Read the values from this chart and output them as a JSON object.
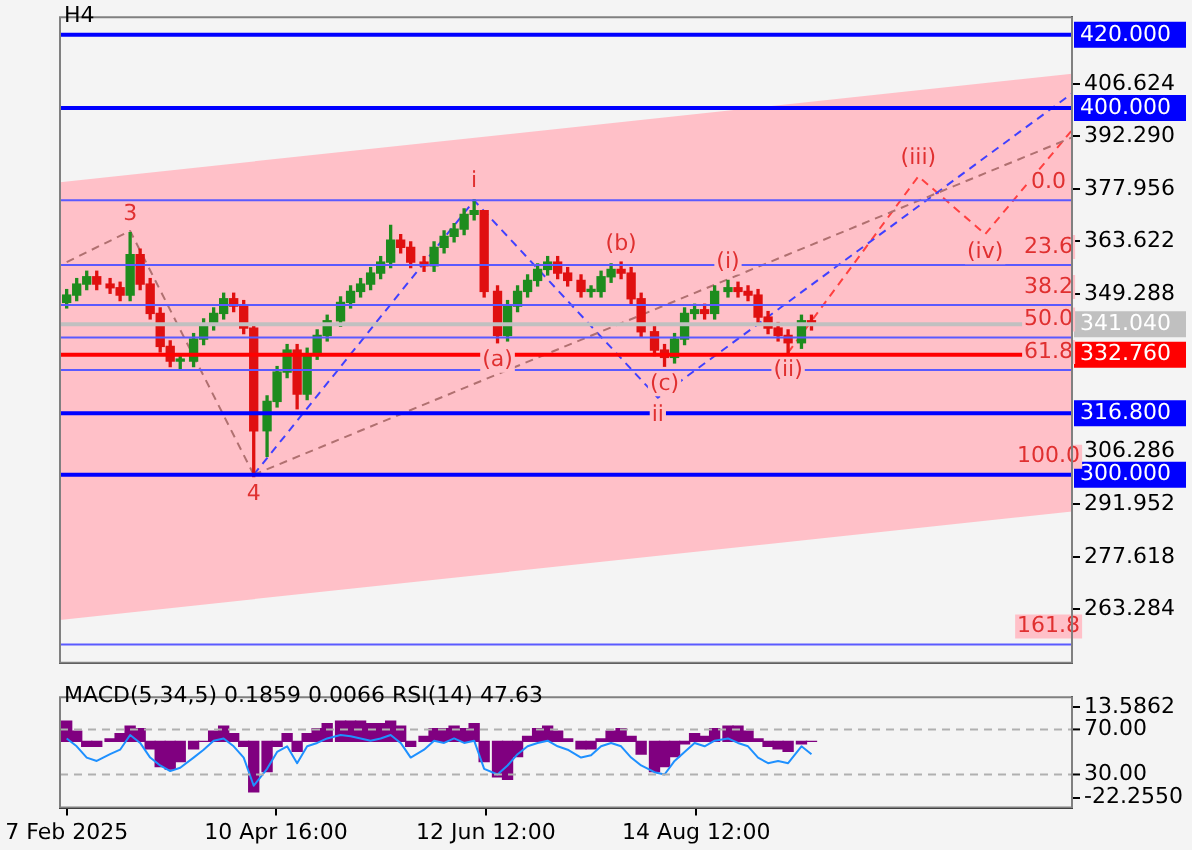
{
  "chart_data": [
    {
      "type": "candlestick",
      "title": "H4",
      "tick_labels": "y",
      "x": [
        "2025-02-07",
        "2025-02-10",
        "2025-02-13",
        "2025-02-16",
        "2025-02-20",
        "2025-02-23",
        "2025-02-26",
        "2025-03-01",
        "2025-03-04",
        "2025-03-07",
        "2025-03-10",
        "2025-03-13",
        "2025-03-17",
        "2025-03-20",
        "2025-03-23",
        "2025-03-26",
        "2025-03-29",
        "2025-04-01",
        "2025-04-04",
        "2025-04-08",
        "2025-04-11",
        "2025-04-14",
        "2025-04-17",
        "2025-04-20",
        "2025-04-23",
        "2025-04-26",
        "2025-04-30",
        "2025-05-03",
        "2025-05-06",
        "2025-05-09",
        "2025-05-12",
        "2025-05-15",
        "2025-05-18",
        "2025-05-21",
        "2025-05-25",
        "2025-05-28",
        "2025-05-31",
        "2025-06-03",
        "2025-06-06",
        "2025-06-09",
        "2025-06-12",
        "2025-06-16",
        "2025-06-19",
        "2025-06-22",
        "2025-06-25",
        "2025-06-28",
        "2025-07-01",
        "2025-07-04",
        "2025-07-07",
        "2025-07-11",
        "2025-07-14",
        "2025-07-17",
        "2025-07-20",
        "2025-07-23",
        "2025-07-26",
        "2025-07-29",
        "2025-08-02",
        "2025-08-05",
        "2025-08-08",
        "2025-08-11",
        "2025-08-14",
        "2025-08-17",
        "2025-08-20",
        "2025-08-24",
        "2025-08-27",
        "2025-08-30",
        "2025-09-02",
        "2025-09-05",
        "2025-09-08",
        "2025-09-11",
        "2025-09-15",
        "2025-09-18"
      ],
      "ohlc": [
        [
          347,
          350.5,
          345.5,
          349
        ],
        [
          349,
          353.5,
          347.5,
          352
        ],
        [
          352,
          355.5,
          350.5,
          354
        ],
        [
          354,
          355.5,
          350.5,
          352
        ],
        [
          352,
          353.5,
          349.5,
          351
        ],
        [
          351,
          352.5,
          347.5,
          349
        ],
        [
          349,
          366,
          347.5,
          360
        ],
        [
          360,
          361.5,
          350.5,
          352
        ],
        [
          352,
          353.5,
          342.5,
          344
        ],
        [
          344,
          345.5,
          333.5,
          335
        ],
        [
          335,
          336.5,
          329.5,
          331
        ],
        [
          331,
          332.5,
          329,
          331
        ],
        [
          331,
          338.5,
          329.5,
          337
        ],
        [
          337,
          342.5,
          335.5,
          341
        ],
        [
          341,
          345.5,
          339.5,
          344
        ],
        [
          344,
          349.5,
          342.5,
          348
        ],
        [
          348,
          349.5,
          344.5,
          346
        ],
        [
          346,
          347.5,
          338.5,
          340
        ],
        [
          340,
          341,
          299.5,
          312
        ],
        [
          312,
          321.5,
          305,
          320
        ],
        [
          320,
          329.5,
          318.5,
          328
        ],
        [
          328,
          335.5,
          326.5,
          334
        ],
        [
          334,
          335.5,
          318,
          322
        ],
        [
          322,
          334.5,
          320.5,
          333
        ],
        [
          333,
          339.5,
          331.5,
          338
        ],
        [
          338,
          343.5,
          336.5,
          342
        ],
        [
          342,
          348.5,
          340.5,
          347
        ],
        [
          347,
          351.5,
          345.5,
          350
        ],
        [
          350,
          353.5,
          348.5,
          352
        ],
        [
          352,
          356.5,
          350.5,
          355
        ],
        [
          355,
          359.5,
          353.5,
          358
        ],
        [
          358,
          368,
          356.5,
          364
        ],
        [
          364,
          365.5,
          360.5,
          362
        ],
        [
          362,
          363.5,
          356.5,
          358
        ],
        [
          358,
          359.5,
          355.5,
          357
        ],
        [
          357,
          363.5,
          355.5,
          362
        ],
        [
          362,
          366.5,
          360.5,
          365
        ],
        [
          365,
          368.5,
          363.5,
          367
        ],
        [
          367,
          372.5,
          365.5,
          371
        ],
        [
          371,
          375,
          369.5,
          372
        ],
        [
          372,
          372,
          348.5,
          350
        ],
        [
          350,
          351.5,
          336,
          338
        ],
        [
          338,
          347.5,
          336.5,
          346
        ],
        [
          346,
          351.5,
          344.5,
          350
        ],
        [
          350,
          354.5,
          348.5,
          353
        ],
        [
          353,
          357.5,
          351.5,
          356
        ],
        [
          356,
          359.5,
          354.5,
          358
        ],
        [
          358,
          359.5,
          353.5,
          355
        ],
        [
          355,
          356.5,
          351.5,
          353
        ],
        [
          353,
          354.5,
          348.5,
          350
        ],
        [
          350,
          351.5,
          348.5,
          350
        ],
        [
          350,
          355.5,
          348.5,
          354
        ],
        [
          354,
          357.5,
          352.5,
          356
        ],
        [
          356,
          358,
          353.5,
          355
        ],
        [
          355,
          356.5,
          346.5,
          348
        ],
        [
          348,
          349.5,
          337.5,
          339
        ],
        [
          339,
          340.5,
          332.5,
          334
        ],
        [
          334,
          335.5,
          329.6,
          332
        ],
        [
          332,
          338.5,
          330.5,
          337
        ],
        [
          337,
          345.5,
          335.5,
          344
        ],
        [
          344,
          346.5,
          342.5,
          345
        ],
        [
          345,
          346.5,
          342.5,
          344
        ],
        [
          344,
          351.5,
          342.5,
          350
        ],
        [
          350,
          353,
          348.5,
          351
        ],
        [
          351,
          352.5,
          348.5,
          350
        ],
        [
          350,
          351.5,
          347.5,
          349
        ],
        [
          349,
          350.5,
          341.5,
          343
        ],
        [
          343,
          344.5,
          338.5,
          340
        ],
        [
          340,
          341.5,
          336.5,
          338
        ],
        [
          338,
          339.5,
          333.3,
          336
        ],
        [
          336,
          343.5,
          334.5,
          342
        ],
        [
          342,
          343.5,
          339.5,
          341.04
        ]
      ],
      "series": [
        {
          "type": "line",
          "x": [
            "2025-02-05",
            "2025-12-05"
          ],
          "values": [
            null,
            null
          ],
          "lower": [
            260.4,
            290
          ],
          "upper": [
            379.8,
            409.4
          ],
          "color": "#ffc0c8"
        },
        {
          "type": "line",
          "x": [
            "2025-02-07",
            "2025-02-26",
            "2025-04-04"
          ],
          "values": [
            358,
            366.5,
            300
          ],
          "color": "#b07070",
          "line_style": "dashed"
        },
        {
          "type": "line",
          "x": [
            "2025-04-04",
            "2025-12-05"
          ],
          "values": [
            300,
            392
          ],
          "color": "#b07070",
          "line_style": "dashed"
        },
        {
          "type": "line",
          "x": [
            "2025-04-04",
            "2025-06-09",
            "2025-08-03",
            "2025-12-05"
          ],
          "values": [
            300,
            374.8,
            321,
            404
          ],
          "color": "#4040ff",
          "line_style": "dashed"
        },
        {
          "type": "line",
          "x": [
            "2025-09-11",
            "2025-10-20",
            "2025-11-09",
            "2025-12-05"
          ],
          "values": [
            333.3,
            381.4,
            365.6,
            394
          ],
          "color": "#ff4040",
          "line_style": "dashed"
        }
      ],
      "xlim": [
        "2025-02-05",
        "2025-12-05"
      ],
      "ylim": [
        248.7,
        424.8
      ],
      "yticks": [
        406.624,
        {
          "value": 392.29,
          "label": "392.290"
        },
        377.956,
        363.622,
        349.288,
        306.286,
        291.952,
        277.618,
        263.284
      ],
      "ref_lines": [
        {
          "axis": "y",
          "value": 420,
          "label": "420.000",
          "color": "#0000ff",
          "line_style": "solid"
        },
        {
          "axis": "y",
          "value": 400,
          "label": "400.000",
          "color": "#0000ff",
          "line_style": "solid"
        },
        {
          "axis": "y",
          "value": 316.8,
          "label": "316.800",
          "color": "#0000ff",
          "line_style": "solid"
        },
        {
          "axis": "y",
          "value": 300,
          "label": "300.000",
          "color": "#0000ff",
          "line_style": "solid"
        },
        {
          "axis": "y",
          "value": 341.04,
          "label": "341.040",
          "color": "#c0c0c0",
          "line_style": "solid"
        },
        {
          "axis": "y",
          "value": 332.76,
          "label": "332.760",
          "color": "#ff0000",
          "line_style": "solid"
        },
        {
          "axis": "y",
          "value": 374.9,
          "color": "#5a5aff"
        },
        {
          "axis": "y",
          "value": 357.2,
          "color": "#5a5aff"
        },
        {
          "axis": "y",
          "value": 346.3,
          "color": "#5a5aff"
        },
        {
          "axis": "y",
          "value": 337.4,
          "color": "#5a5aff"
        },
        {
          "axis": "y",
          "value": 328.6,
          "color": "#5a5aff"
        },
        {
          "axis": "y",
          "value": 253.7,
          "color": "#5a5aff"
        }
      ],
      "annotations": [
        {
          "text": "3",
          "x": "2025-02-26",
          "y": 366
        },
        {
          "text": "4",
          "x": "2025-04-04",
          "y": 299.5
        },
        {
          "text": "i",
          "x": "2025-06-09",
          "y": 375
        },
        {
          "text": "(a)",
          "x": "2025-06-16",
          "y": 336
        },
        {
          "text": "(b)",
          "x": "2025-07-23",
          "y": 358
        },
        {
          "text": "(c)",
          "x": "2025-08-05",
          "y": 329.6
        },
        {
          "text": "ii",
          "x": "2025-08-03",
          "y": 321
        },
        {
          "text": "(i)",
          "x": "2025-08-24",
          "y": 353
        },
        {
          "text": "(ii)",
          "x": "2025-09-11",
          "y": 333.3
        },
        {
          "text": "(iii)",
          "x": "2025-10-20",
          "y": 381.4
        },
        {
          "text": "(iv)",
          "x": "2025-11-09",
          "y": 365.6
        },
        {
          "text": "0.0",
          "x": "2025-11-28",
          "y": 374.9
        },
        {
          "text": "23.6",
          "x": "2025-11-28",
          "y": 357.2
        },
        {
          "text": "38.2",
          "x": "2025-11-28",
          "y": 346.3
        },
        {
          "text": "50.0",
          "x": "2025-11-28",
          "y": 337.4
        },
        {
          "text": "61.8",
          "x": "2025-11-28",
          "y": 328.6
        },
        {
          "text": "100.0",
          "x": "2025-11-28",
          "y": 300
        },
        {
          "text": "161.8",
          "x": "2025-11-28",
          "y": 253.7
        }
      ]
    },
    {
      "type": "bar",
      "title": "MACD(5,34,5) 0.1859 0.0066 RSI(14) 47.63",
      "x": [
        "2025-02-07",
        "2025-02-10",
        "2025-02-13",
        "2025-02-16",
        "2025-02-20",
        "2025-02-23",
        "2025-02-26",
        "2025-03-01",
        "2025-03-04",
        "2025-03-07",
        "2025-03-10",
        "2025-03-13",
        "2025-03-17",
        "2025-03-20",
        "2025-03-23",
        "2025-03-26",
        "2025-03-29",
        "2025-04-01",
        "2025-04-04",
        "2025-04-08",
        "2025-04-11",
        "2025-04-14",
        "2025-04-17",
        "2025-04-20",
        "2025-04-23",
        "2025-04-26",
        "2025-04-30",
        "2025-05-03",
        "2025-05-06",
        "2025-05-09",
        "2025-05-12",
        "2025-05-15",
        "2025-05-18",
        "2025-05-21",
        "2025-05-25",
        "2025-05-28",
        "2025-05-31",
        "2025-06-03",
        "2025-06-06",
        "2025-06-09",
        "2025-06-12",
        "2025-06-16",
        "2025-06-19",
        "2025-06-22",
        "2025-06-25",
        "2025-06-28",
        "2025-07-01",
        "2025-07-04",
        "2025-07-07",
        "2025-07-11",
        "2025-07-14",
        "2025-07-17",
        "2025-07-20",
        "2025-07-23",
        "2025-07-26",
        "2025-07-29",
        "2025-08-02",
        "2025-08-05",
        "2025-08-08",
        "2025-08-11",
        "2025-08-14",
        "2025-08-17",
        "2025-08-20",
        "2025-08-24",
        "2025-08-27",
        "2025-08-30",
        "2025-09-02",
        "2025-09-05",
        "2025-09-08",
        "2025-09-11",
        "2025-09-15",
        "2025-09-18"
      ],
      "series": [
        {
          "color": "#800080",
          "values": [
            8,
            4,
            -2,
            -2,
            1,
            3,
            6,
            5,
            -3,
            -10,
            -11,
            -8,
            -3,
            0,
            4,
            6,
            3,
            -2,
            -20,
            -12,
            -2,
            3,
            -4,
            3,
            5,
            7,
            8,
            8,
            8,
            7,
            7,
            8,
            6,
            -2,
            2,
            5,
            5,
            6,
            5,
            7,
            -8,
            -14,
            -15,
            -6,
            2,
            5,
            6,
            4,
            1,
            -3,
            -3,
            1,
            4,
            5,
            2,
            -5,
            -12,
            -10,
            -6,
            -1,
            3,
            2,
            5,
            6,
            6,
            4,
            1,
            -2,
            -3,
            -4,
            -1,
            0
          ]
        },
        {
          "type": "line",
          "axis": "y2",
          "color": "#1e90ff",
          "values": [
            62,
            55,
            45,
            42,
            48,
            52,
            65,
            58,
            45,
            38,
            33,
            36,
            45,
            52,
            60,
            62,
            55,
            45,
            20,
            35,
            50,
            55,
            40,
            55,
            58,
            62,
            65,
            64,
            62,
            60,
            62,
            65,
            58,
            45,
            52,
            60,
            58,
            62,
            58,
            60,
            35,
            30,
            38,
            48,
            55,
            58,
            60,
            55,
            52,
            45,
            47,
            55,
            58,
            55,
            45,
            38,
            32,
            30,
            42,
            50,
            58,
            55,
            60,
            62,
            58,
            55,
            45,
            40,
            42,
            40,
            55,
            48
          ]
        }
      ],
      "xlim": [
        "2025-02-05",
        "2025-12-05"
      ],
      "xticks": [
        {
          "value": "2025-02-07",
          "label": "7 Feb 2025"
        },
        {
          "value": "2025-04-10T16:00",
          "label": "10 Apr 16:00"
        },
        {
          "value": "2025-06-12T12:00",
          "label": "12 Jun 12:00"
        },
        {
          "value": "2025-08-14T12:00",
          "label": "14 Aug 12:00"
        }
      ],
      "ylim": [
        -26.2,
        17.46
      ],
      "yticks": [
        13.5862,
        {
          "value": -22.255,
          "label": "-22.2550"
        }
      ],
      "y2lim": [
        0.6,
        98.6
      ],
      "y2ticks": [
        {
          "value": 70,
          "label": "70.00"
        },
        {
          "value": 30,
          "label": "30.00"
        }
      ],
      "ref_lines": [
        {
          "axis": "y2",
          "value": 70,
          "color": "#b0b0b0",
          "line_style": "dashed"
        },
        {
          "axis": "y2",
          "value": 30,
          "color": "#b0b0b0",
          "line_style": "dashed"
        }
      ]
    }
  ]
}
